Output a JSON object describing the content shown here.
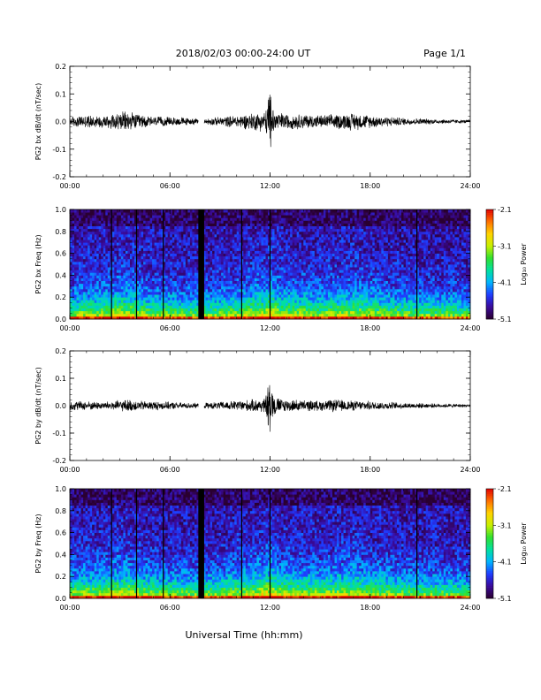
{
  "header": {
    "title": "2018/02/03  00:00-24:00 UT",
    "page": "Page 1/1"
  },
  "footer": {
    "xlabel": "Universal Time (hh:mm)"
  },
  "colorbar": {
    "label": "Log₁₀ Power",
    "ticks": [
      "-2.1",
      "-3.1",
      "-4.1",
      "-5.1"
    ],
    "tick_values": [
      -2.1,
      -3.1,
      -4.1,
      -5.1
    ],
    "colormap": [
      "#2a0030",
      "#3a0a9a",
      "#1e3cff",
      "#00b4ff",
      "#00e0a0",
      "#30e030",
      "#c8f000",
      "#ffd200",
      "#ff7000",
      "#e00000"
    ]
  },
  "chart_data": [
    {
      "type": "line",
      "id": "bx-dbdt",
      "title": "",
      "ylabel": "PG2 bx dB/dt (nT/sec)",
      "xlim": [
        0,
        24
      ],
      "ylim": [
        -0.2,
        0.2
      ],
      "xticks": [
        "00:00",
        "06:00",
        "12:00",
        "18:00",
        "24:00"
      ],
      "yticks": [
        "0.2",
        "0.1",
        "0.0",
        "-0.1",
        "-0.2"
      ],
      "ytick_values": [
        0.2,
        0.1,
        0.0,
        -0.1,
        -0.2
      ],
      "gap_hours": [
        7.7,
        8.05
      ],
      "amplitude_envelope": {
        "hours": [
          0,
          1,
          2,
          2.7,
          3.5,
          4,
          5,
          6,
          7,
          7.7,
          8.1,
          9,
          10,
          11,
          11.7,
          12,
          12.3,
          13,
          14,
          15,
          16,
          17,
          18,
          19,
          20,
          21,
          22,
          23,
          24
        ],
        "amplitude": [
          0.02,
          0.025,
          0.025,
          0.035,
          0.04,
          0.03,
          0.02,
          0.018,
          0.015,
          0.01,
          0.012,
          0.018,
          0.025,
          0.035,
          0.04,
          0.1,
          0.04,
          0.03,
          0.03,
          0.025,
          0.03,
          0.035,
          0.025,
          0.02,
          0.015,
          0.012,
          0.01,
          0.008,
          0.006
        ]
      }
    },
    {
      "type": "heatmap",
      "id": "bx-spectrogram",
      "title": "",
      "ylabel": "PG2 bx Freq (Hz)",
      "xlim": [
        0,
        24
      ],
      "ylim": [
        0.0,
        1.0
      ],
      "xticks": [
        "00:00",
        "06:00",
        "12:00",
        "18:00",
        "24:00"
      ],
      "yticks": [
        "1.0",
        "0.8",
        "0.6",
        "0.4",
        "0.2",
        "0.0"
      ],
      "ytick_values": [
        1.0,
        0.8,
        0.6,
        0.4,
        0.2,
        0.0
      ],
      "zlim": [
        -5.1,
        -2.1
      ],
      "vertical_lines_hours": [
        2.5,
        4.0,
        5.6,
        10.3,
        12.0,
        20.8
      ],
      "gap_hours": [
        7.7,
        8.05
      ]
    },
    {
      "type": "line",
      "id": "by-dbdt",
      "title": "",
      "ylabel": "PG2 by dB/dt (nT/sec)",
      "xlim": [
        0,
        24
      ],
      "ylim": [
        -0.2,
        0.2
      ],
      "xticks": [
        "00:00",
        "06:00",
        "12:00",
        "18:00",
        "24:00"
      ],
      "yticks": [
        "0.2",
        "0.1",
        "0.0",
        "-0.1",
        "-0.2"
      ],
      "ytick_values": [
        0.2,
        0.1,
        0.0,
        -0.1,
        -0.2
      ],
      "gap_hours": [
        7.7,
        8.05
      ],
      "amplitude_envelope": {
        "hours": [
          0,
          1,
          2,
          2.7,
          3.5,
          4,
          5,
          6,
          7,
          7.7,
          8.1,
          9,
          10,
          11,
          11.7,
          12,
          12.3,
          13,
          14,
          15,
          16,
          17,
          18,
          19,
          20,
          21,
          22,
          23,
          24
        ],
        "amplitude": [
          0.02,
          0.018,
          0.015,
          0.02,
          0.025,
          0.02,
          0.018,
          0.015,
          0.012,
          0.01,
          0.012,
          0.015,
          0.02,
          0.025,
          0.03,
          0.095,
          0.035,
          0.025,
          0.022,
          0.02,
          0.025,
          0.02,
          0.018,
          0.015,
          0.012,
          0.01,
          0.008,
          0.007,
          0.006
        ]
      }
    },
    {
      "type": "heatmap",
      "id": "by-spectrogram",
      "title": "",
      "ylabel": "PG2 by Freq (Hz)",
      "xlim": [
        0,
        24
      ],
      "ylim": [
        0.0,
        1.0
      ],
      "xticks": [
        "00:00",
        "06:00",
        "12:00",
        "18:00",
        "24:00"
      ],
      "yticks": [
        "1.0",
        "0.8",
        "0.6",
        "0.4",
        "0.2",
        "0.0"
      ],
      "ytick_values": [
        1.0,
        0.8,
        0.6,
        0.4,
        0.2,
        0.0
      ],
      "zlim": [
        -5.1,
        -2.1
      ],
      "vertical_lines_hours": [
        2.5,
        4.0,
        5.6,
        10.3,
        12.0,
        20.8
      ],
      "gap_hours": [
        7.7,
        8.05
      ]
    }
  ]
}
